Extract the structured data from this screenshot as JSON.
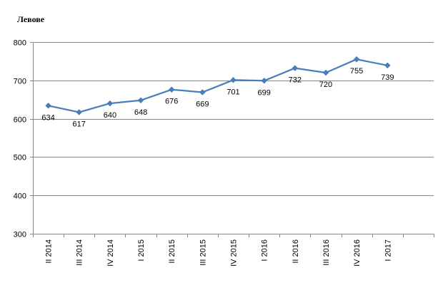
{
  "chart_data": {
    "type": "line",
    "ylabel": "Левове",
    "categories": [
      "II 2014",
      "III 2014",
      "IV 2014",
      "I 2015",
      "II 2015",
      "III 2015",
      "IV 2015",
      "I 2016",
      "II 2016",
      "III 2016",
      "IV 2016",
      "I 2017"
    ],
    "series": [
      {
        "values": [
          634,
          617,
          640,
          648,
          676,
          669,
          701,
          699,
          732,
          720,
          755,
          739
        ],
        "data_labels": [
          "634",
          "617",
          "640",
          "648",
          "676",
          "669",
          "701",
          "699",
          "732",
          "720",
          "755",
          "739"
        ],
        "color": "#4a7ebb",
        "marker": "diamond"
      }
    ],
    "ylim": [
      300,
      800
    ],
    "yticks": [
      300,
      400,
      500,
      600,
      700,
      800
    ],
    "ytick_labels": [
      "300",
      "400",
      "500",
      "600",
      "700",
      "800"
    ],
    "grid": true,
    "legend": "none",
    "colors": {
      "line": "#4a7ebb",
      "grid": "#868686",
      "axis": "#868686",
      "text": "#000000"
    }
  }
}
